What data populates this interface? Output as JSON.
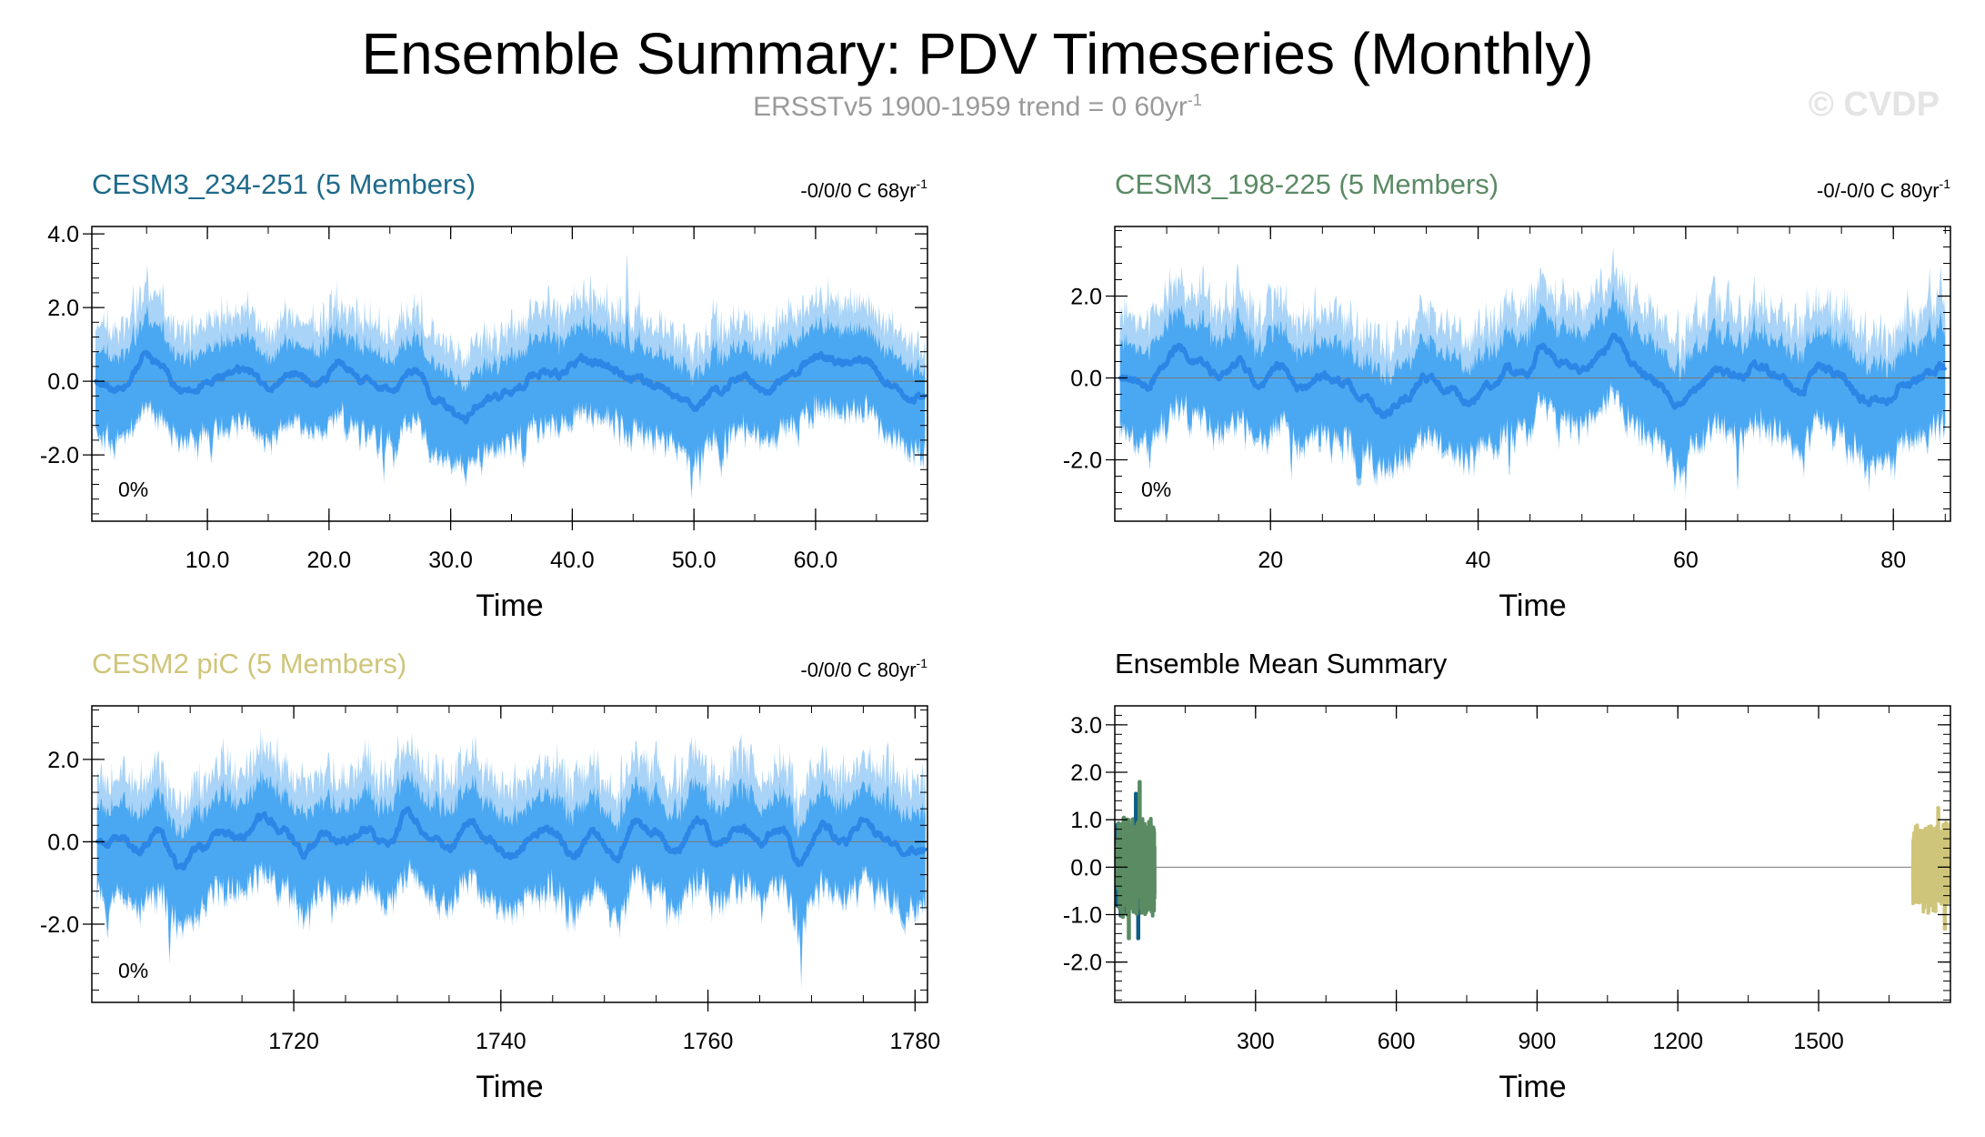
{
  "title": "Ensemble Summary: PDV Timeseries (Monthly)",
  "subtitle": {
    "text": "ERSSTv5 1900-1959 trend = 0 60yr",
    "sup": "-1"
  },
  "watermark": "© CVDP",
  "colors": {
    "spread_outer": "#a9d3f7",
    "spread_inner": "#4aa8f2",
    "mean_line": "#2b86e6",
    "zero_line": "#777777",
    "member_cesm3_234": "#0f5e84",
    "member_cesm3_198": "#5a8b62",
    "member_cesm2_pic": "#cfc57a"
  },
  "chart_data": [
    {
      "id": "p1",
      "type": "area",
      "title": "CESM3_234-251 (5 Members)",
      "title_color": "#1e6a8a",
      "trend": "-0/0/0 C 68yr",
      "trend_sup": "-1",
      "percent": "0%",
      "xlabel": "Time",
      "xlim": [
        0.5,
        69.2
      ],
      "ylim": [
        -3.8,
        4.2
      ],
      "xticks": [
        10,
        20,
        30,
        40,
        50,
        60
      ],
      "xtick_labels": [
        "10.0",
        "20.0",
        "30.0",
        "40.0",
        "50.0",
        "60.0"
      ],
      "yticks": [
        4,
        2,
        0,
        -2
      ],
      "ytick_labels": [
        "4.0",
        "2.0",
        "0.0",
        "-2.0"
      ],
      "mean_keys": [
        [
          0.8,
          0.0
        ],
        [
          3,
          -0.2
        ],
        [
          5,
          0.7
        ],
        [
          6,
          0.4
        ],
        [
          8,
          -0.3
        ],
        [
          11,
          0.1
        ],
        [
          13,
          0.3
        ],
        [
          15,
          -0.2
        ],
        [
          17,
          0.2
        ],
        [
          19,
          -0.1
        ],
        [
          21,
          0.5
        ],
        [
          23,
          0.0
        ],
        [
          25,
          -0.2
        ],
        [
          27,
          0.3
        ],
        [
          29,
          -0.6
        ],
        [
          31,
          -1.0
        ],
        [
          33,
          -0.5
        ],
        [
          35,
          -0.3
        ],
        [
          37,
          0.2
        ],
        [
          39,
          0.2
        ],
        [
          41,
          0.6
        ],
        [
          43,
          0.4
        ],
        [
          45,
          0.1
        ],
        [
          47,
          -0.1
        ],
        [
          49,
          -0.5
        ],
        [
          50,
          -0.7
        ],
        [
          52,
          -0.2
        ],
        [
          54,
          0.1
        ],
        [
          56,
          -0.3
        ],
        [
          58,
          0.2
        ],
        [
          60,
          0.7
        ],
        [
          62,
          0.5
        ],
        [
          64,
          0.6
        ],
        [
          66,
          -0.1
        ],
        [
          68,
          -0.5
        ],
        [
          69,
          -0.3
        ]
      ],
      "big_spikes": [
        [
          44.5,
          3.8
        ],
        [
          45.5,
          2.6
        ],
        [
          31,
          -2.5
        ],
        [
          49.8,
          -3.5
        ],
        [
          50.5,
          -3.0
        ],
        [
          24.5,
          -3.0
        ],
        [
          41.5,
          3.0
        ]
      ]
    },
    {
      "id": "p2",
      "type": "area",
      "title": "CESM3_198-225 (5 Members)",
      "title_color": "#5a8a64",
      "trend": "-0/-0/0 C 80yr",
      "trend_sup": "-1",
      "percent": "0%",
      "xlabel": "Time",
      "xlim": [
        5,
        85.5
      ],
      "ylim": [
        -3.5,
        3.7
      ],
      "xticks": [
        20,
        40,
        60,
        80
      ],
      "xtick_labels": [
        "20",
        "40",
        "60",
        "80"
      ],
      "yticks": [
        2,
        0,
        -2
      ],
      "ytick_labels": [
        "2.0",
        "0.0",
        "-2.0"
      ],
      "mean_keys": [
        [
          5.5,
          0.0
        ],
        [
          8,
          -0.2
        ],
        [
          11,
          0.7
        ],
        [
          13,
          0.4
        ],
        [
          15,
          0.0
        ],
        [
          17,
          0.4
        ],
        [
          19,
          -0.2
        ],
        [
          21,
          0.3
        ],
        [
          23,
          -0.3
        ],
        [
          25,
          0.1
        ],
        [
          27,
          -0.1
        ],
        [
          29,
          -0.4
        ],
        [
          31,
          -0.9
        ],
        [
          33,
          -0.5
        ],
        [
          35,
          0.0
        ],
        [
          37,
          -0.3
        ],
        [
          39,
          -0.6
        ],
        [
          41,
          -0.2
        ],
        [
          43,
          0.2
        ],
        [
          45,
          0.1
        ],
        [
          46,
          0.8
        ],
        [
          48,
          0.4
        ],
        [
          50,
          0.2
        ],
        [
          52,
          0.6
        ],
        [
          53,
          1.0
        ],
        [
          55,
          0.3
        ],
        [
          57,
          -0.1
        ],
        [
          59,
          -0.6
        ],
        [
          61,
          -0.3
        ],
        [
          63,
          0.2
        ],
        [
          65,
          0.0
        ],
        [
          67,
          0.3
        ],
        [
          69,
          0.0
        ],
        [
          71,
          -0.3
        ],
        [
          73,
          0.3
        ],
        [
          75,
          0.1
        ],
        [
          77,
          -0.5
        ],
        [
          79,
          -0.6
        ],
        [
          81,
          -0.2
        ],
        [
          83,
          0.0
        ],
        [
          85,
          0.3
        ]
      ],
      "big_spikes": [
        [
          53,
          3.4
        ],
        [
          46,
          3.0
        ],
        [
          13.5,
          3.1
        ],
        [
          43,
          -2.8
        ],
        [
          60,
          -3.0
        ],
        [
          65,
          -3.1
        ],
        [
          22,
          -2.7
        ]
      ]
    },
    {
      "id": "p3",
      "type": "area",
      "title": "CESM2 piC (5 Members)",
      "title_color": "#cfc57a",
      "trend": "-0/0/0 C 80yr",
      "trend_sup": "-1",
      "percent": "0%",
      "xlabel": "Time",
      "xlim": [
        1700.5,
        1781.2
      ],
      "ylim": [
        -3.9,
        3.3
      ],
      "xticks": [
        1720,
        1740,
        1760,
        1780
      ],
      "xtick_labels": [
        "1720",
        "1740",
        "1760",
        "1780"
      ],
      "yticks": [
        2,
        0,
        -2
      ],
      "ytick_labels": [
        "2.0",
        "0.0",
        "-2.0"
      ],
      "mean_keys": [
        [
          1701,
          0.0
        ],
        [
          1703,
          0.1
        ],
        [
          1705,
          -0.2
        ],
        [
          1707,
          0.2
        ],
        [
          1709,
          -0.6
        ],
        [
          1711,
          -0.2
        ],
        [
          1713,
          0.3
        ],
        [
          1715,
          0.1
        ],
        [
          1717,
          0.6
        ],
        [
          1719,
          0.3
        ],
        [
          1721,
          -0.3
        ],
        [
          1723,
          0.2
        ],
        [
          1725,
          0.0
        ],
        [
          1727,
          0.3
        ],
        [
          1729,
          -0.1
        ],
        [
          1731,
          0.7
        ],
        [
          1733,
          0.1
        ],
        [
          1735,
          -0.2
        ],
        [
          1737,
          0.5
        ],
        [
          1739,
          0.0
        ],
        [
          1741,
          -0.4
        ],
        [
          1743,
          0.1
        ],
        [
          1745,
          0.3
        ],
        [
          1747,
          -0.3
        ],
        [
          1749,
          0.2
        ],
        [
          1751,
          -0.4
        ],
        [
          1753,
          0.5
        ],
        [
          1755,
          0.2
        ],
        [
          1757,
          -0.3
        ],
        [
          1759,
          0.6
        ],
        [
          1761,
          -0.1
        ],
        [
          1763,
          0.4
        ],
        [
          1765,
          0.0
        ],
        [
          1767,
          0.3
        ],
        [
          1769,
          -0.5
        ],
        [
          1771,
          0.4
        ],
        [
          1773,
          0.0
        ],
        [
          1775,
          0.5
        ],
        [
          1777,
          0.1
        ],
        [
          1779,
          -0.2
        ],
        [
          1781,
          -0.2
        ]
      ],
      "big_spikes": [
        [
          1769,
          -3.6
        ],
        [
          1755,
          2.8
        ],
        [
          1708,
          -3.2
        ],
        [
          1775,
          2.5
        ]
      ]
    },
    {
      "id": "p4",
      "type": "line",
      "title": "Ensemble Mean Summary",
      "title_color": "#000000",
      "xlabel": "Time",
      "xlim": [
        0,
        1781
      ],
      "ylim": [
        -2.85,
        3.4
      ],
      "xticks": [
        300,
        600,
        900,
        1200,
        1500
      ],
      "xtick_labels": [
        "300",
        "600",
        "900",
        "1200",
        "1500"
      ],
      "yticks": [
        3,
        2,
        1,
        0,
        -1,
        -2
      ],
      "ytick_labels": [
        "3.0",
        "2.0",
        "1.0",
        "0.0",
        "-1.0",
        "-2.0"
      ],
      "series": [
        {
          "name": "CESM3_234-251",
          "color": "#0f5e84",
          "x_range": [
            0.5,
            69
          ],
          "amplitude": 1.1,
          "peaks": [
            [
              45,
              1.55
            ],
            [
              50,
              -1.5
            ]
          ]
        },
        {
          "name": "CESM3_198-225",
          "color": "#5a8b62",
          "x_range": [
            5,
            85
          ],
          "amplitude": 1.1,
          "peaks": [
            [
              53,
              1.8
            ],
            [
              30,
              -1.5
            ]
          ]
        },
        {
          "name": "CESM2 piC",
          "color": "#cfc57a",
          "x_range": [
            1701,
            1781
          ],
          "amplitude": 1.0,
          "peaks": [
            [
              1755,
              1.25
            ],
            [
              1769,
              -1.3
            ]
          ]
        }
      ]
    }
  ]
}
